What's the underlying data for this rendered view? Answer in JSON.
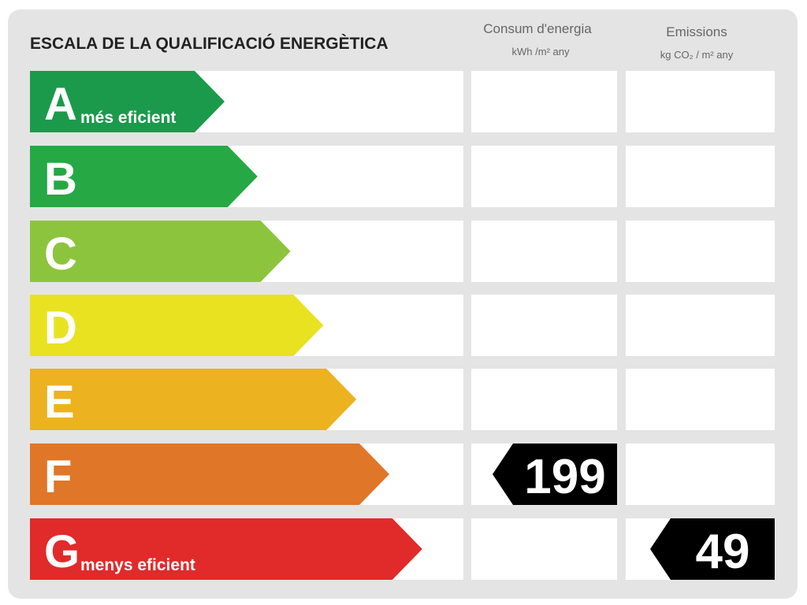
{
  "title": "ESCALA DE LA QUALIFICACIÓ ENERGÈTICA",
  "columns": [
    {
      "title": "Consum d'energia",
      "unit": "kWh /m² any"
    },
    {
      "title": "Emissions",
      "unit": "kg CO₂ / m² any"
    }
  ],
  "rows": [
    {
      "letter": "A",
      "label": "més eficient",
      "color": "#1b9a4b"
    },
    {
      "letter": "B",
      "color": "#26a845"
    },
    {
      "letter": "C",
      "color": "#8dc43d"
    },
    {
      "letter": "D",
      "color": "#e9e221"
    },
    {
      "letter": "E",
      "color": "#edb21f"
    },
    {
      "letter": "F",
      "color": "#e07628",
      "consumption": 199
    },
    {
      "letter": "G",
      "label": "menys eficient",
      "color": "#e12a2a",
      "emissions": 49
    }
  ]
}
